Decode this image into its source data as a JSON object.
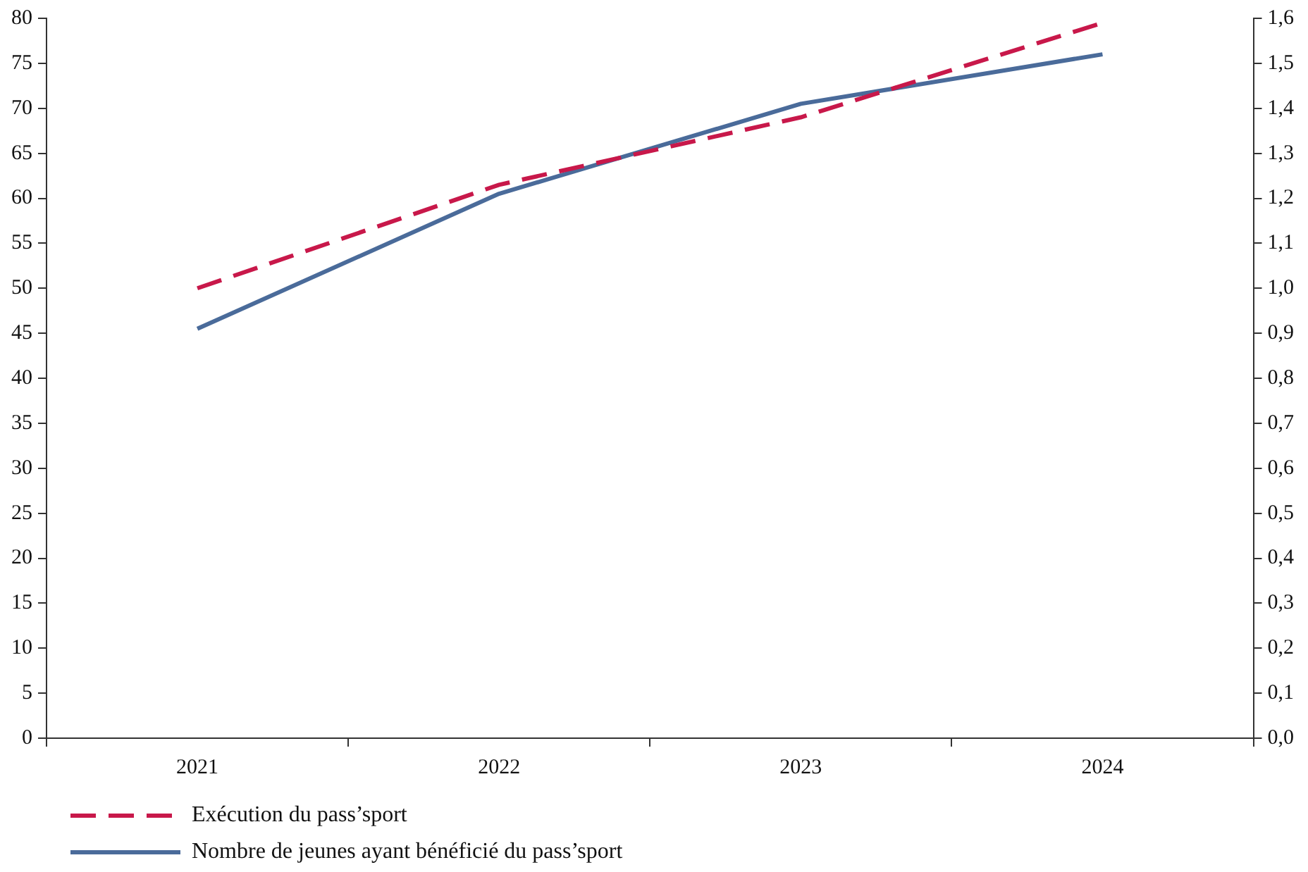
{
  "chart_data": {
    "type": "line",
    "categories": [
      "2021",
      "2022",
      "2023",
      "2024"
    ],
    "series": [
      {
        "name": "Exécution du pass’sport",
        "color": "#c8184a",
        "values": [
          50,
          61.5,
          69,
          79.5
        ],
        "axis": "y",
        "line_style": "dashed"
      },
      {
        "name": "Nombre de jeunes ayant bénéficié du pass’sport",
        "color": "#4a6b9a",
        "values": [
          0.91,
          1.21,
          1.41,
          1.52
        ],
        "axis": "y2",
        "line_style": "solid"
      }
    ],
    "ylim": [
      0,
      80
    ],
    "yticks": [
      0,
      5,
      10,
      15,
      20,
      25,
      30,
      35,
      40,
      45,
      50,
      55,
      60,
      65,
      70,
      75,
      80
    ],
    "y2lim": [
      0,
      1.6
    ],
    "y2ticks": [
      {
        "value": 0,
        "label": "0,0"
      },
      {
        "value": 0.1,
        "label": "0,1"
      },
      {
        "value": 0.2,
        "label": "0,2"
      },
      {
        "value": 0.3,
        "label": "0,3"
      },
      {
        "value": 0.4,
        "label": "0,4"
      },
      {
        "value": 0.5,
        "label": "0,5"
      },
      {
        "value": 0.6,
        "label": "0,6"
      },
      {
        "value": 0.7,
        "label": "0,7"
      },
      {
        "value": 0.8,
        "label": "0,8"
      },
      {
        "value": 0.9,
        "label": "0,9"
      },
      {
        "value": 1.0,
        "label": "1,0"
      },
      {
        "value": 1.1,
        "label": "1,1"
      },
      {
        "value": 1.2,
        "label": "1,2"
      },
      {
        "value": 1.3,
        "label": "1,3"
      },
      {
        "value": 1.4,
        "label": "1,4"
      },
      {
        "value": 1.5,
        "label": "1,5"
      },
      {
        "value": 1.6,
        "label": "1,6"
      }
    ],
    "grid": false,
    "legend": "bottom left",
    "marker": "none"
  }
}
